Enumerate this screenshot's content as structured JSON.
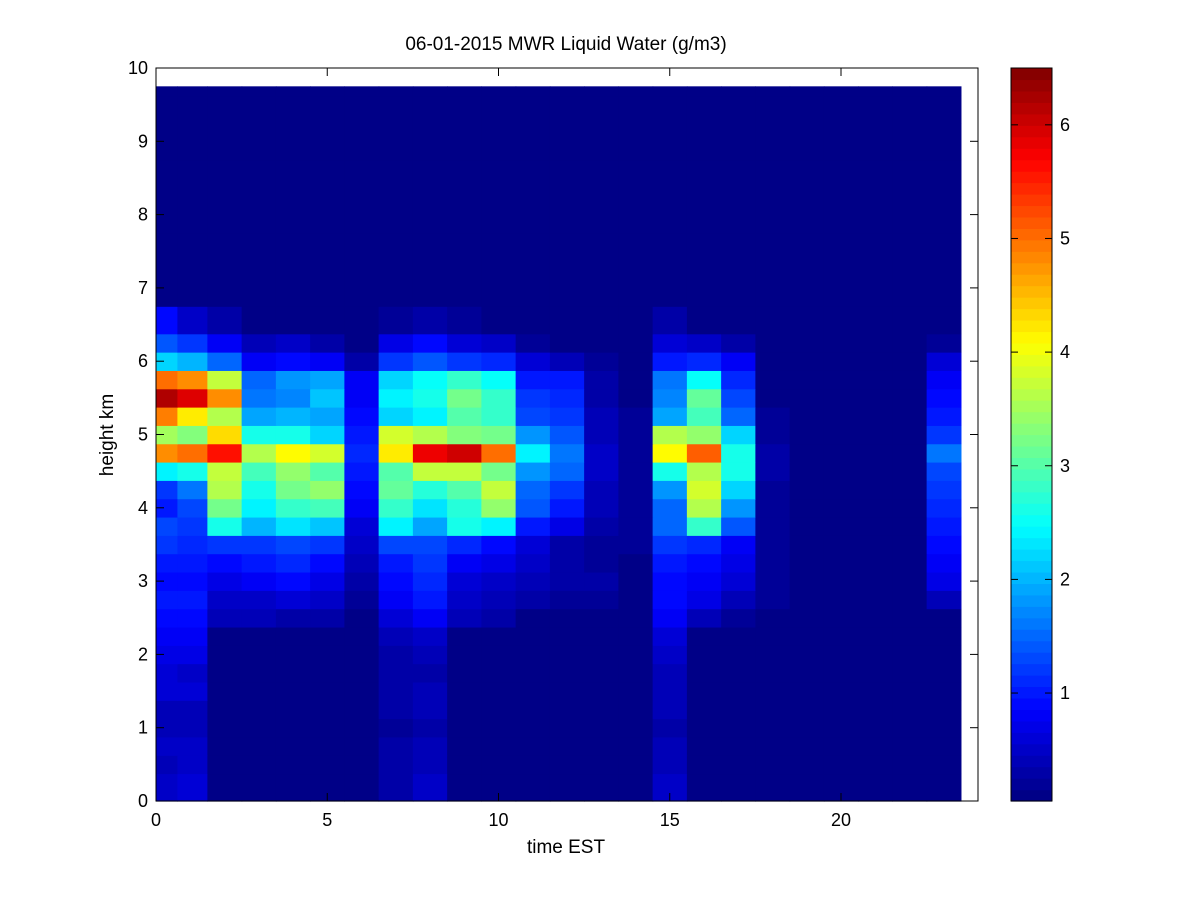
{
  "chart_data": {
    "type": "heatmap",
    "title": "06-01-2015 MWR Liquid Water (g/m3)",
    "xlabel": "time EST",
    "ylabel": "height km",
    "xlim": [
      0,
      24
    ],
    "ylim": [
      0,
      10
    ],
    "x_ticks": [
      0,
      5,
      10,
      15,
      20
    ],
    "y_ticks": [
      0,
      1,
      2,
      3,
      4,
      5,
      6,
      7,
      8,
      9,
      10
    ],
    "colorbar": {
      "colormap": "jet",
      "range": [
        0.05,
        6.5
      ],
      "ticks": [
        1,
        2,
        3,
        4,
        5,
        6
      ]
    },
    "x_columns": [
      0.25,
      1.0,
      2.0,
      3.0,
      4.0,
      5.0,
      6.0,
      7.0,
      8.0,
      9.0,
      10.0,
      11.0,
      12.0,
      13.0,
      14.0,
      15.0,
      16.0,
      17.0,
      18.0,
      19.0,
      20.0,
      21.0,
      22.0,
      23.0
    ],
    "y_rows": [
      0.25,
      0.5,
      0.75,
      1.0,
      1.25,
      1.5,
      1.75,
      2.0,
      2.25,
      2.5,
      2.75,
      3.0,
      3.25,
      3.5,
      3.75,
      4.0,
      4.25,
      4.5,
      4.75,
      5.0,
      5.25,
      5.5,
      5.75,
      6.0,
      6.25,
      6.5,
      7.0,
      7.5,
      8.0,
      8.5,
      9.0,
      9.5,
      9.75
    ],
    "z": [
      [
        0.5,
        0.6,
        0.1,
        0.1,
        0.1,
        0.1,
        0.1,
        0.3,
        0.5,
        0.1,
        0.1,
        0.1,
        0.1,
        0.1,
        0.1,
        0.5,
        0.1,
        0.1,
        0.1,
        0.1,
        0.1,
        0.1,
        0.1,
        0.1
      ],
      [
        0.4,
        0.5,
        0.1,
        0.1,
        0.1,
        0.1,
        0.1,
        0.3,
        0.4,
        0.1,
        0.1,
        0.1,
        0.1,
        0.1,
        0.1,
        0.4,
        0.1,
        0.1,
        0.1,
        0.1,
        0.1,
        0.1,
        0.1,
        0.1
      ],
      [
        0.5,
        0.5,
        0.1,
        0.1,
        0.1,
        0.1,
        0.1,
        0.3,
        0.4,
        0.1,
        0.1,
        0.1,
        0.1,
        0.1,
        0.1,
        0.4,
        0.1,
        0.1,
        0.1,
        0.1,
        0.1,
        0.1,
        0.1,
        0.1
      ],
      [
        0.4,
        0.4,
        0.1,
        0.1,
        0.1,
        0.1,
        0.1,
        0.2,
        0.3,
        0.1,
        0.1,
        0.1,
        0.1,
        0.1,
        0.1,
        0.3,
        0.1,
        0.1,
        0.1,
        0.1,
        0.1,
        0.1,
        0.1,
        0.1
      ],
      [
        0.4,
        0.4,
        0.1,
        0.1,
        0.1,
        0.1,
        0.1,
        0.3,
        0.4,
        0.1,
        0.1,
        0.1,
        0.1,
        0.1,
        0.1,
        0.4,
        0.1,
        0.1,
        0.1,
        0.1,
        0.1,
        0.1,
        0.1,
        0.1
      ],
      [
        0.6,
        0.6,
        0.1,
        0.1,
        0.1,
        0.1,
        0.1,
        0.3,
        0.4,
        0.1,
        0.1,
        0.1,
        0.1,
        0.1,
        0.1,
        0.4,
        0.1,
        0.1,
        0.1,
        0.1,
        0.1,
        0.1,
        0.1,
        0.1
      ],
      [
        0.6,
        0.5,
        0.1,
        0.1,
        0.1,
        0.1,
        0.1,
        0.3,
        0.3,
        0.1,
        0.1,
        0.1,
        0.1,
        0.1,
        0.1,
        0.4,
        0.1,
        0.1,
        0.1,
        0.1,
        0.1,
        0.1,
        0.1,
        0.1
      ],
      [
        0.7,
        0.7,
        0.1,
        0.1,
        0.1,
        0.1,
        0.1,
        0.3,
        0.4,
        0.1,
        0.1,
        0.1,
        0.1,
        0.1,
        0.1,
        0.5,
        0.1,
        0.1,
        0.1,
        0.1,
        0.1,
        0.1,
        0.1,
        0.1
      ],
      [
        0.8,
        0.8,
        0.1,
        0.1,
        0.1,
        0.1,
        0.1,
        0.4,
        0.5,
        0.1,
        0.1,
        0.1,
        0.1,
        0.1,
        0.1,
        0.6,
        0.1,
        0.1,
        0.1,
        0.1,
        0.1,
        0.1,
        0.1,
        0.1
      ],
      [
        0.9,
        0.9,
        0.4,
        0.4,
        0.3,
        0.3,
        0.1,
        0.6,
        0.8,
        0.4,
        0.3,
        0.1,
        0.1,
        0.1,
        0.1,
        0.8,
        0.4,
        0.2,
        0.1,
        0.1,
        0.1,
        0.1,
        0.1,
        0.1
      ],
      [
        1.0,
        1.0,
        0.5,
        0.5,
        0.6,
        0.5,
        0.2,
        0.8,
        1.0,
        0.5,
        0.4,
        0.3,
        0.2,
        0.2,
        0.1,
        0.9,
        0.7,
        0.4,
        0.2,
        0.1,
        0.1,
        0.1,
        0.1,
        0.4
      ],
      [
        0.9,
        0.9,
        0.7,
        0.8,
        0.9,
        0.7,
        0.3,
        0.9,
        1.1,
        0.6,
        0.5,
        0.4,
        0.3,
        0.3,
        0.1,
        0.9,
        0.8,
        0.6,
        0.2,
        0.1,
        0.1,
        0.1,
        0.1,
        0.7
      ],
      [
        1.0,
        1.0,
        0.9,
        1.0,
        1.1,
        0.9,
        0.4,
        1.0,
        1.2,
        0.8,
        0.7,
        0.5,
        0.3,
        0.2,
        0.1,
        1.0,
        0.9,
        0.7,
        0.2,
        0.1,
        0.1,
        0.1,
        0.1,
        0.8
      ],
      [
        1.2,
        1.1,
        1.2,
        1.2,
        1.3,
        1.2,
        0.5,
        1.3,
        1.3,
        1.1,
        0.9,
        0.6,
        0.3,
        0.2,
        0.2,
        1.2,
        1.1,
        0.8,
        0.2,
        0.1,
        0.1,
        0.1,
        0.1,
        0.9
      ],
      [
        1.3,
        1.2,
        2.6,
        2.0,
        2.3,
        2.1,
        0.6,
        2.4,
        1.9,
        2.6,
        2.4,
        1.0,
        0.7,
        0.3,
        0.2,
        1.5,
        2.8,
        1.4,
        0.2,
        0.1,
        0.1,
        0.1,
        0.1,
        1.0
      ],
      [
        1.0,
        1.3,
        3.2,
        2.4,
        2.8,
        2.9,
        0.8,
        2.8,
        2.3,
        2.7,
        3.4,
        1.4,
        1.0,
        0.4,
        0.2,
        1.5,
        3.6,
        1.8,
        0.2,
        0.1,
        0.1,
        0.1,
        0.1,
        1.1
      ],
      [
        1.2,
        1.6,
        3.6,
        2.6,
        3.2,
        3.4,
        0.9,
        3.1,
        2.7,
        3.0,
        3.7,
        1.5,
        1.2,
        0.4,
        0.2,
        1.8,
        3.8,
        2.2,
        0.2,
        0.1,
        0.1,
        0.1,
        0.1,
        1.2
      ],
      [
        2.4,
        2.6,
        3.7,
        2.9,
        3.4,
        3.0,
        1.0,
        3.0,
        3.7,
        3.7,
        3.2,
        1.8,
        1.5,
        0.5,
        0.2,
        2.6,
        3.6,
        2.6,
        0.3,
        0.1,
        0.1,
        0.1,
        0.1,
        1.3
      ],
      [
        4.8,
        5.0,
        5.6,
        3.6,
        4.1,
        3.8,
        1.1,
        4.2,
        5.8,
        6.0,
        5.0,
        2.4,
        1.6,
        0.5,
        0.2,
        4.1,
        5.1,
        2.6,
        0.3,
        0.1,
        0.1,
        0.1,
        0.1,
        1.6
      ],
      [
        3.5,
        3.3,
        4.3,
        2.6,
        2.6,
        2.2,
        1.0,
        3.8,
        3.6,
        3.3,
        3.2,
        1.8,
        1.4,
        0.4,
        0.2,
        3.6,
        3.4,
        2.2,
        0.2,
        0.1,
        0.1,
        0.1,
        0.1,
        1.2
      ],
      [
        4.9,
        4.2,
        3.6,
        1.9,
        2.0,
        1.9,
        0.9,
        2.2,
        2.4,
        3.0,
        2.8,
        1.3,
        1.2,
        0.4,
        0.2,
        1.9,
        2.9,
        1.5,
        0.2,
        0.1,
        0.1,
        0.1,
        0.1,
        1.0
      ],
      [
        6.2,
        5.9,
        4.8,
        1.6,
        1.7,
        2.1,
        0.8,
        2.4,
        2.6,
        3.2,
        2.8,
        1.2,
        1.1,
        0.3,
        0.1,
        1.7,
        3.1,
        1.3,
        0.1,
        0.1,
        0.1,
        0.1,
        0.1,
        0.9
      ],
      [
        5.0,
        4.8,
        3.7,
        1.5,
        1.8,
        1.9,
        0.8,
        2.2,
        2.5,
        2.8,
        2.5,
        1.0,
        1.0,
        0.3,
        0.1,
        1.6,
        2.5,
        1.1,
        0.1,
        0.1,
        0.1,
        0.1,
        0.1,
        0.8
      ],
      [
        2.2,
        2.0,
        1.5,
        0.8,
        0.9,
        0.8,
        0.3,
        1.2,
        1.4,
        1.2,
        1.1,
        0.6,
        0.4,
        0.2,
        0.1,
        1.0,
        1.1,
        0.8,
        0.1,
        0.1,
        0.1,
        0.1,
        0.1,
        0.6
      ],
      [
        1.4,
        1.2,
        0.8,
        0.4,
        0.5,
        0.3,
        0.1,
        0.7,
        0.9,
        0.6,
        0.5,
        0.2,
        0.1,
        0.1,
        0.1,
        0.6,
        0.5,
        0.3,
        0.1,
        0.1,
        0.1,
        0.1,
        0.1,
        0.2
      ],
      [
        0.9,
        0.5,
        0.3,
        0.1,
        0.1,
        0.1,
        0.1,
        0.2,
        0.3,
        0.2,
        0.1,
        0.1,
        0.1,
        0.1,
        0.1,
        0.3,
        0.1,
        0.1,
        0.1,
        0.1,
        0.1,
        0.1,
        0.1,
        0.1
      ],
      [
        0.1,
        0.1,
        0.1,
        0.1,
        0.1,
        0.1,
        0.1,
        0.1,
        0.1,
        0.1,
        0.1,
        0.1,
        0.1,
        0.1,
        0.1,
        0.1,
        0.1,
        0.1,
        0.1,
        0.1,
        0.1,
        0.1,
        0.1,
        0.1
      ],
      [
        0.1,
        0.1,
        0.1,
        0.1,
        0.1,
        0.1,
        0.1,
        0.1,
        0.1,
        0.1,
        0.1,
        0.1,
        0.1,
        0.1,
        0.1,
        0.1,
        0.1,
        0.1,
        0.1,
        0.1,
        0.1,
        0.1,
        0.1,
        0.1
      ],
      [
        0.1,
        0.1,
        0.1,
        0.1,
        0.1,
        0.1,
        0.1,
        0.1,
        0.1,
        0.1,
        0.1,
        0.1,
        0.1,
        0.1,
        0.1,
        0.1,
        0.1,
        0.1,
        0.1,
        0.1,
        0.1,
        0.1,
        0.1,
        0.1
      ],
      [
        0.1,
        0.1,
        0.1,
        0.1,
        0.1,
        0.1,
        0.1,
        0.1,
        0.1,
        0.1,
        0.1,
        0.1,
        0.1,
        0.1,
        0.1,
        0.1,
        0.1,
        0.1,
        0.1,
        0.1,
        0.1,
        0.1,
        0.1,
        0.1
      ],
      [
        0.1,
        0.1,
        0.1,
        0.1,
        0.1,
        0.1,
        0.1,
        0.1,
        0.1,
        0.1,
        0.1,
        0.1,
        0.1,
        0.1,
        0.1,
        0.1,
        0.1,
        0.1,
        0.1,
        0.1,
        0.1,
        0.1,
        0.1,
        0.1
      ],
      [
        0.1,
        0.1,
        0.1,
        0.1,
        0.1,
        0.1,
        0.1,
        0.1,
        0.1,
        0.1,
        0.1,
        0.1,
        0.1,
        0.1,
        0.1,
        0.1,
        0.1,
        0.1,
        0.1,
        0.1,
        0.1,
        0.1,
        0.1,
        0.1
      ],
      [
        0.1,
        0.1,
        0.1,
        0.1,
        0.1,
        0.1,
        0.1,
        0.1,
        0.1,
        0.1,
        0.1,
        0.1,
        0.1,
        0.1,
        0.1,
        0.1,
        0.1,
        0.1,
        0.1,
        0.1,
        0.1,
        0.1,
        0.1,
        0.1
      ]
    ]
  }
}
